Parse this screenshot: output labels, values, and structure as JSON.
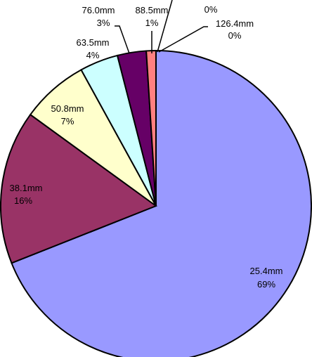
{
  "chart_data": {
    "type": "pie",
    "legend": "none",
    "slices": [
      {
        "label": "25.4mm",
        "value": 69,
        "percent_label": "69%",
        "color": "#9999ff"
      },
      {
        "label": "38.1mm",
        "value": 16,
        "percent_label": "16%",
        "color": "#993366"
      },
      {
        "label": "50.8mm",
        "value": 7,
        "percent_label": "7%",
        "color": "#ffffcc"
      },
      {
        "label": "63.5mm",
        "value": 4,
        "percent_label": "4%",
        "color": "#ccffff"
      },
      {
        "label": "76.0mm",
        "value": 3,
        "percent_label": "3%",
        "color": "#660066"
      },
      {
        "label": "88.5mm",
        "value": 1,
        "percent_label": "1%",
        "color": "#ff8080"
      },
      {
        "label": "",
        "value": 0,
        "percent_label": "0%",
        "color": "#0066cc"
      },
      {
        "label": "126.4mm",
        "value": 0,
        "percent_label": "0%",
        "color": "#c0c0c0"
      }
    ]
  }
}
